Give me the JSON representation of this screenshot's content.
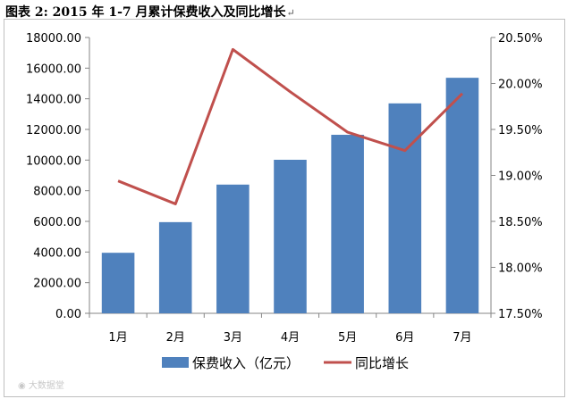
{
  "figure_title": "图表 2: 2015 年 1-7 月累计保费收入及同比增长",
  "watermark": "大数据堂",
  "colors": {
    "bar": "#4f81bd",
    "line": "#c0504d",
    "axis": "#868686",
    "text": "#000000",
    "frame": "#bfbfbf"
  },
  "chart_data": {
    "type": "bar",
    "categories": [
      "1月",
      "2月",
      "3月",
      "4月",
      "5月",
      "6月",
      "7月"
    ],
    "series": [
      {
        "name": "保费收入（亿元）",
        "type": "bar",
        "axis": "left",
        "values": [
          3950,
          5950,
          8400,
          10020,
          11650,
          13700,
          15370
        ]
      },
      {
        "name": "同比增长",
        "type": "line",
        "axis": "right",
        "values": [
          18.94,
          18.69,
          20.37,
          19.91,
          19.47,
          19.27,
          19.89
        ]
      }
    ],
    "y_left": {
      "ylim": [
        0,
        18000
      ],
      "ticks": [
        "0.00",
        "2000.00",
        "4000.00",
        "6000.00",
        "8000.00",
        "10000.00",
        "12000.00",
        "14000.00",
        "16000.00",
        "18000.00"
      ]
    },
    "y_right": {
      "ylim": [
        17.5,
        20.5
      ],
      "ticks": [
        "17.50%",
        "18.00%",
        "18.50%",
        "19.00%",
        "19.50%",
        "20.00%",
        "20.50%"
      ]
    },
    "grid": false,
    "legend": "bottom"
  }
}
